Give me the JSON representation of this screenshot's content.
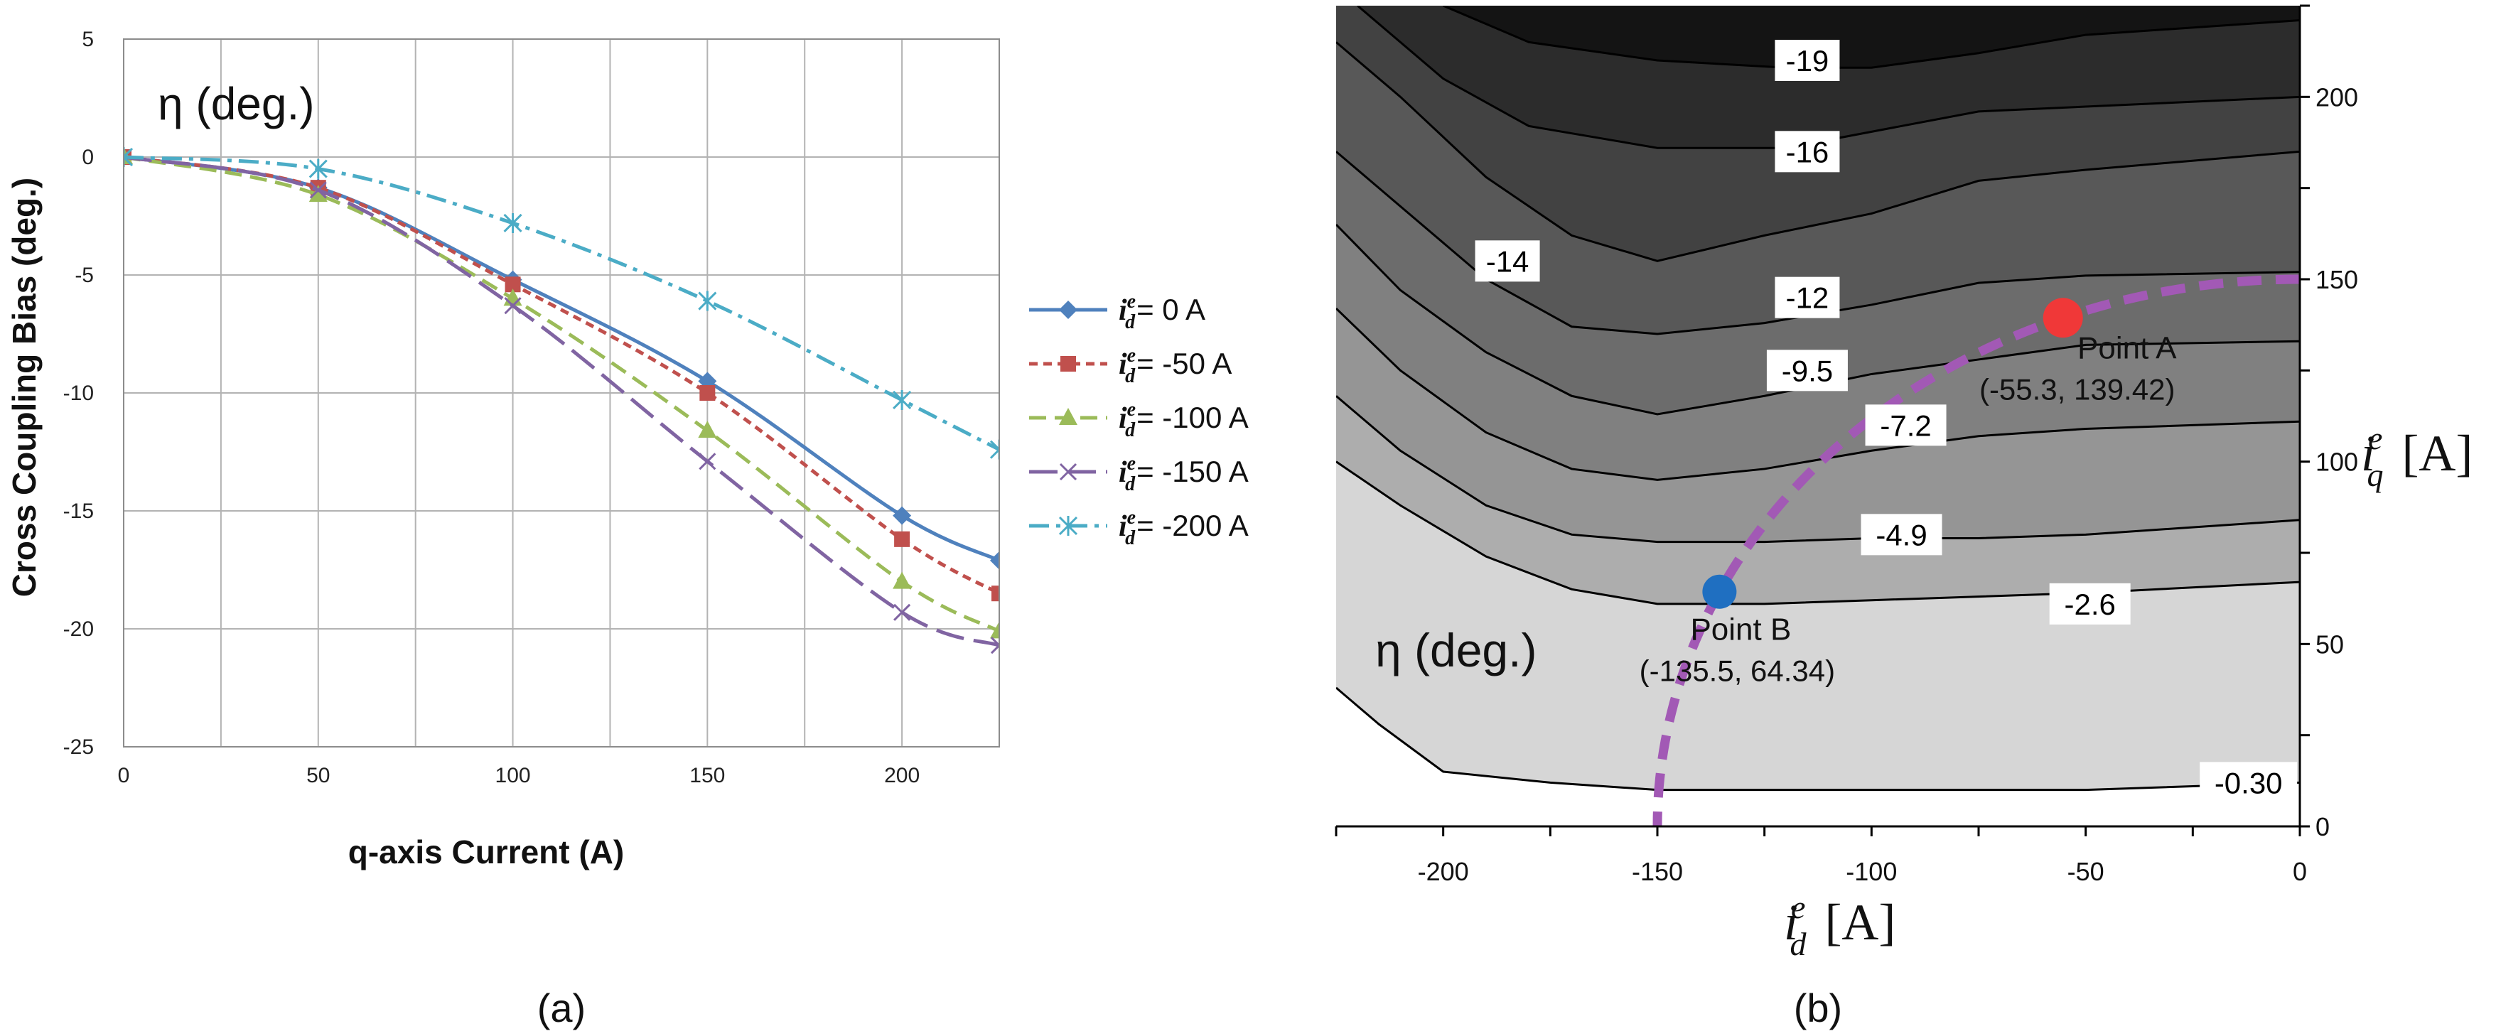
{
  "chart_data": [
    {
      "type": "line",
      "panel_label": "(a)",
      "overlay_label": "η (deg.)",
      "xlabel": "q-axis Current (A)",
      "ylabel": "Cross Coupling  Bias (deg.)",
      "xlim": [
        0,
        225
      ],
      "ylim": [
        -25,
        5
      ],
      "x_ticks": [
        0,
        50,
        100,
        150,
        200
      ],
      "x_gridlines": [
        0,
        25,
        50,
        75,
        100,
        125,
        150,
        175,
        200,
        225
      ],
      "y_ticks": [
        5,
        0,
        -5,
        -10,
        -15,
        -20,
        -25
      ],
      "grid": true,
      "legend_position": "right",
      "x": [
        0,
        50,
        100,
        150,
        200,
        225
      ],
      "series": [
        {
          "legend_main": "i",
          "legend_sup": "e",
          "legend_sub": "d",
          "legend_value": "= 0 A",
          "color": "#4F81BD",
          "marker": "diamond",
          "dash": "solid",
          "values": [
            0,
            -1.3,
            -5.2,
            -9.5,
            -15.2,
            -17.1
          ]
        },
        {
          "legend_main": "i",
          "legend_sup": "e",
          "legend_sub": "d",
          "legend_value": "= -50 A",
          "color": "#C0504D",
          "marker": "square",
          "dash": "short-dash",
          "values": [
            0,
            -1.3,
            -5.4,
            -10.0,
            -16.2,
            -18.5
          ]
        },
        {
          "legend_main": "i",
          "legend_sup": "e",
          "legend_sub": "d",
          "legend_value": "= -100 A",
          "color": "#9BBB59",
          "marker": "triangle",
          "dash": "dash",
          "values": [
            0,
            -1.6,
            -6.0,
            -11.6,
            -18.0,
            -20.1
          ]
        },
        {
          "legend_main": "i",
          "legend_sup": "e",
          "legend_sub": "d",
          "legend_value": "= -150 A",
          "color": "#8064A2",
          "marker": "x",
          "dash": "long-dash",
          "values": [
            0,
            -1.4,
            -6.3,
            -12.9,
            -19.3,
            -20.7
          ]
        },
        {
          "legend_main": "i",
          "legend_sup": "e",
          "legend_sub": "d",
          "legend_value": "= -200 A",
          "color": "#4BACC6",
          "marker": "star",
          "dash": "dash-dot",
          "values": [
            0,
            -0.5,
            -2.8,
            -6.1,
            -10.3,
            -12.4
          ]
        }
      ]
    },
    {
      "type": "contour",
      "panel_label": "(b)",
      "overlay_label": "η (deg.)",
      "xlim": [
        -225,
        0
      ],
      "ylim": [
        0,
        225
      ],
      "x_ticks": [
        -200,
        -150,
        -100,
        -50,
        0
      ],
      "y_ticks": [
        0,
        50,
        100,
        150,
        200
      ],
      "y_axis_side": "right",
      "xlabel_main": "i",
      "xlabel_sup": "e",
      "xlabel_sub": "d",
      "xlabel_unit": "[A]",
      "ylabel_main": "i",
      "ylabel_sup": "e",
      "ylabel_sub": "q",
      "ylabel_unit": "[A]",
      "levels": [
        {
          "label": "-19",
          "value": -19,
          "label_at": [
            -115,
            210
          ],
          "line": [
            [
              -200,
              225
            ],
            [
              -180,
              215
            ],
            [
              -150,
              210
            ],
            [
              -120,
              208
            ],
            [
              -100,
              208
            ],
            [
              -75,
              212
            ],
            [
              -50,
              217
            ],
            [
              0,
              221
            ]
          ]
        },
        {
          "label": "-16",
          "value": -16,
          "label_at": [
            -115,
            185
          ],
          "line": [
            [
              -220,
              225
            ],
            [
              -200,
              205
            ],
            [
              -180,
              192
            ],
            [
              -150,
              186
            ],
            [
              -120,
              186
            ],
            [
              -75,
              196
            ],
            [
              0,
              200
            ]
          ]
        },
        {
          "label": "-14",
          "value": -14,
          "label_at": [
            -185,
            155
          ],
          "line": [
            [
              -225,
              215
            ],
            [
              -210,
              200
            ],
            [
              -190,
              178
            ],
            [
              -170,
              162
            ],
            [
              -150,
              155
            ],
            [
              -125,
              162
            ],
            [
              -100,
              168
            ],
            [
              -75,
              177
            ],
            [
              -50,
              180
            ],
            [
              0,
              185
            ]
          ]
        },
        {
          "label": "-12",
          "value": -12,
          "label_at": [
            -115,
            145
          ],
          "line": [
            [
              -225,
              185
            ],
            [
              -210,
              170
            ],
            [
              -190,
              150
            ],
            [
              -170,
              137
            ],
            [
              -150,
              135
            ],
            [
              -125,
              138
            ],
            [
              -100,
              143
            ],
            [
              -75,
              149
            ],
            [
              -50,
              151
            ],
            [
              0,
              152
            ]
          ]
        },
        {
          "label": "-9.5",
          "value": -9.5,
          "label_at": [
            -115,
            125
          ],
          "line": [
            [
              -225,
              165
            ],
            [
              -210,
              147
            ],
            [
              -190,
              130
            ],
            [
              -170,
              118
            ],
            [
              -150,
              113
            ],
            [
              -125,
              118
            ],
            [
              -100,
              124
            ],
            [
              -75,
              128
            ],
            [
              -50,
              132
            ],
            [
              0,
              133
            ]
          ]
        },
        {
          "label": "-7.2",
          "value": -7.2,
          "label_at": [
            -92,
            110
          ],
          "line": [
            [
              -225,
              142
            ],
            [
              -210,
              125
            ],
            [
              -190,
              108
            ],
            [
              -170,
              98
            ],
            [
              -150,
              95
            ],
            [
              -125,
              98
            ],
            [
              -100,
              103
            ],
            [
              -75,
              107
            ],
            [
              -50,
              109
            ],
            [
              0,
              111
            ]
          ]
        },
        {
          "label": "-4.9",
          "value": -4.9,
          "label_at": [
            -93,
            80
          ],
          "line": [
            [
              -225,
              118
            ],
            [
              -210,
              103
            ],
            [
              -190,
              88
            ],
            [
              -170,
              80
            ],
            [
              -150,
              78
            ],
            [
              -125,
              78
            ],
            [
              -100,
              79
            ],
            [
              -75,
              79
            ],
            [
              -50,
              80
            ],
            [
              0,
              84
            ]
          ]
        },
        {
          "label": "-2.6",
          "value": -2.6,
          "label_at": [
            -49,
            61
          ],
          "line": [
            [
              -225,
              100
            ],
            [
              -210,
              88
            ],
            [
              -190,
              74
            ],
            [
              -170,
              65
            ],
            [
              -150,
              61
            ],
            [
              -125,
              61
            ],
            [
              -100,
              62
            ],
            [
              -75,
              63
            ],
            [
              -50,
              64
            ],
            [
              0,
              67
            ]
          ]
        },
        {
          "label": "-0.30",
          "value": -0.3,
          "label_at": [
            -12,
            12
          ],
          "line": [
            [
              -225,
              38
            ],
            [
              -215,
              28
            ],
            [
              -200,
              15
            ],
            [
              -175,
              12
            ],
            [
              -150,
              10
            ],
            [
              -125,
              10
            ],
            [
              -100,
              10
            ],
            [
              -75,
              10
            ],
            [
              -50,
              10
            ],
            [
              0,
              12
            ]
          ]
        }
      ],
      "fills": [
        "#141414",
        "#2c2c2c",
        "#424242",
        "#585858",
        "#6c6c6c",
        "#808080",
        "#959595",
        "#adadad",
        "#d6d6d6",
        "#ffffff"
      ],
      "trajectory_color": "#A259B5",
      "trajectory_circle_center": [
        0,
        0
      ],
      "trajectory_circle_radius": 150,
      "points": [
        {
          "name": "Point A",
          "coords": "(-55.3, 139.42)",
          "x": -55.3,
          "y": 139.42,
          "color": "#F03838"
        },
        {
          "name": "Point B",
          "coords": "(-135.5, 64.34)",
          "x": -135.5,
          "y": 64.34,
          "color": "#1F6FC1"
        }
      ]
    }
  ]
}
